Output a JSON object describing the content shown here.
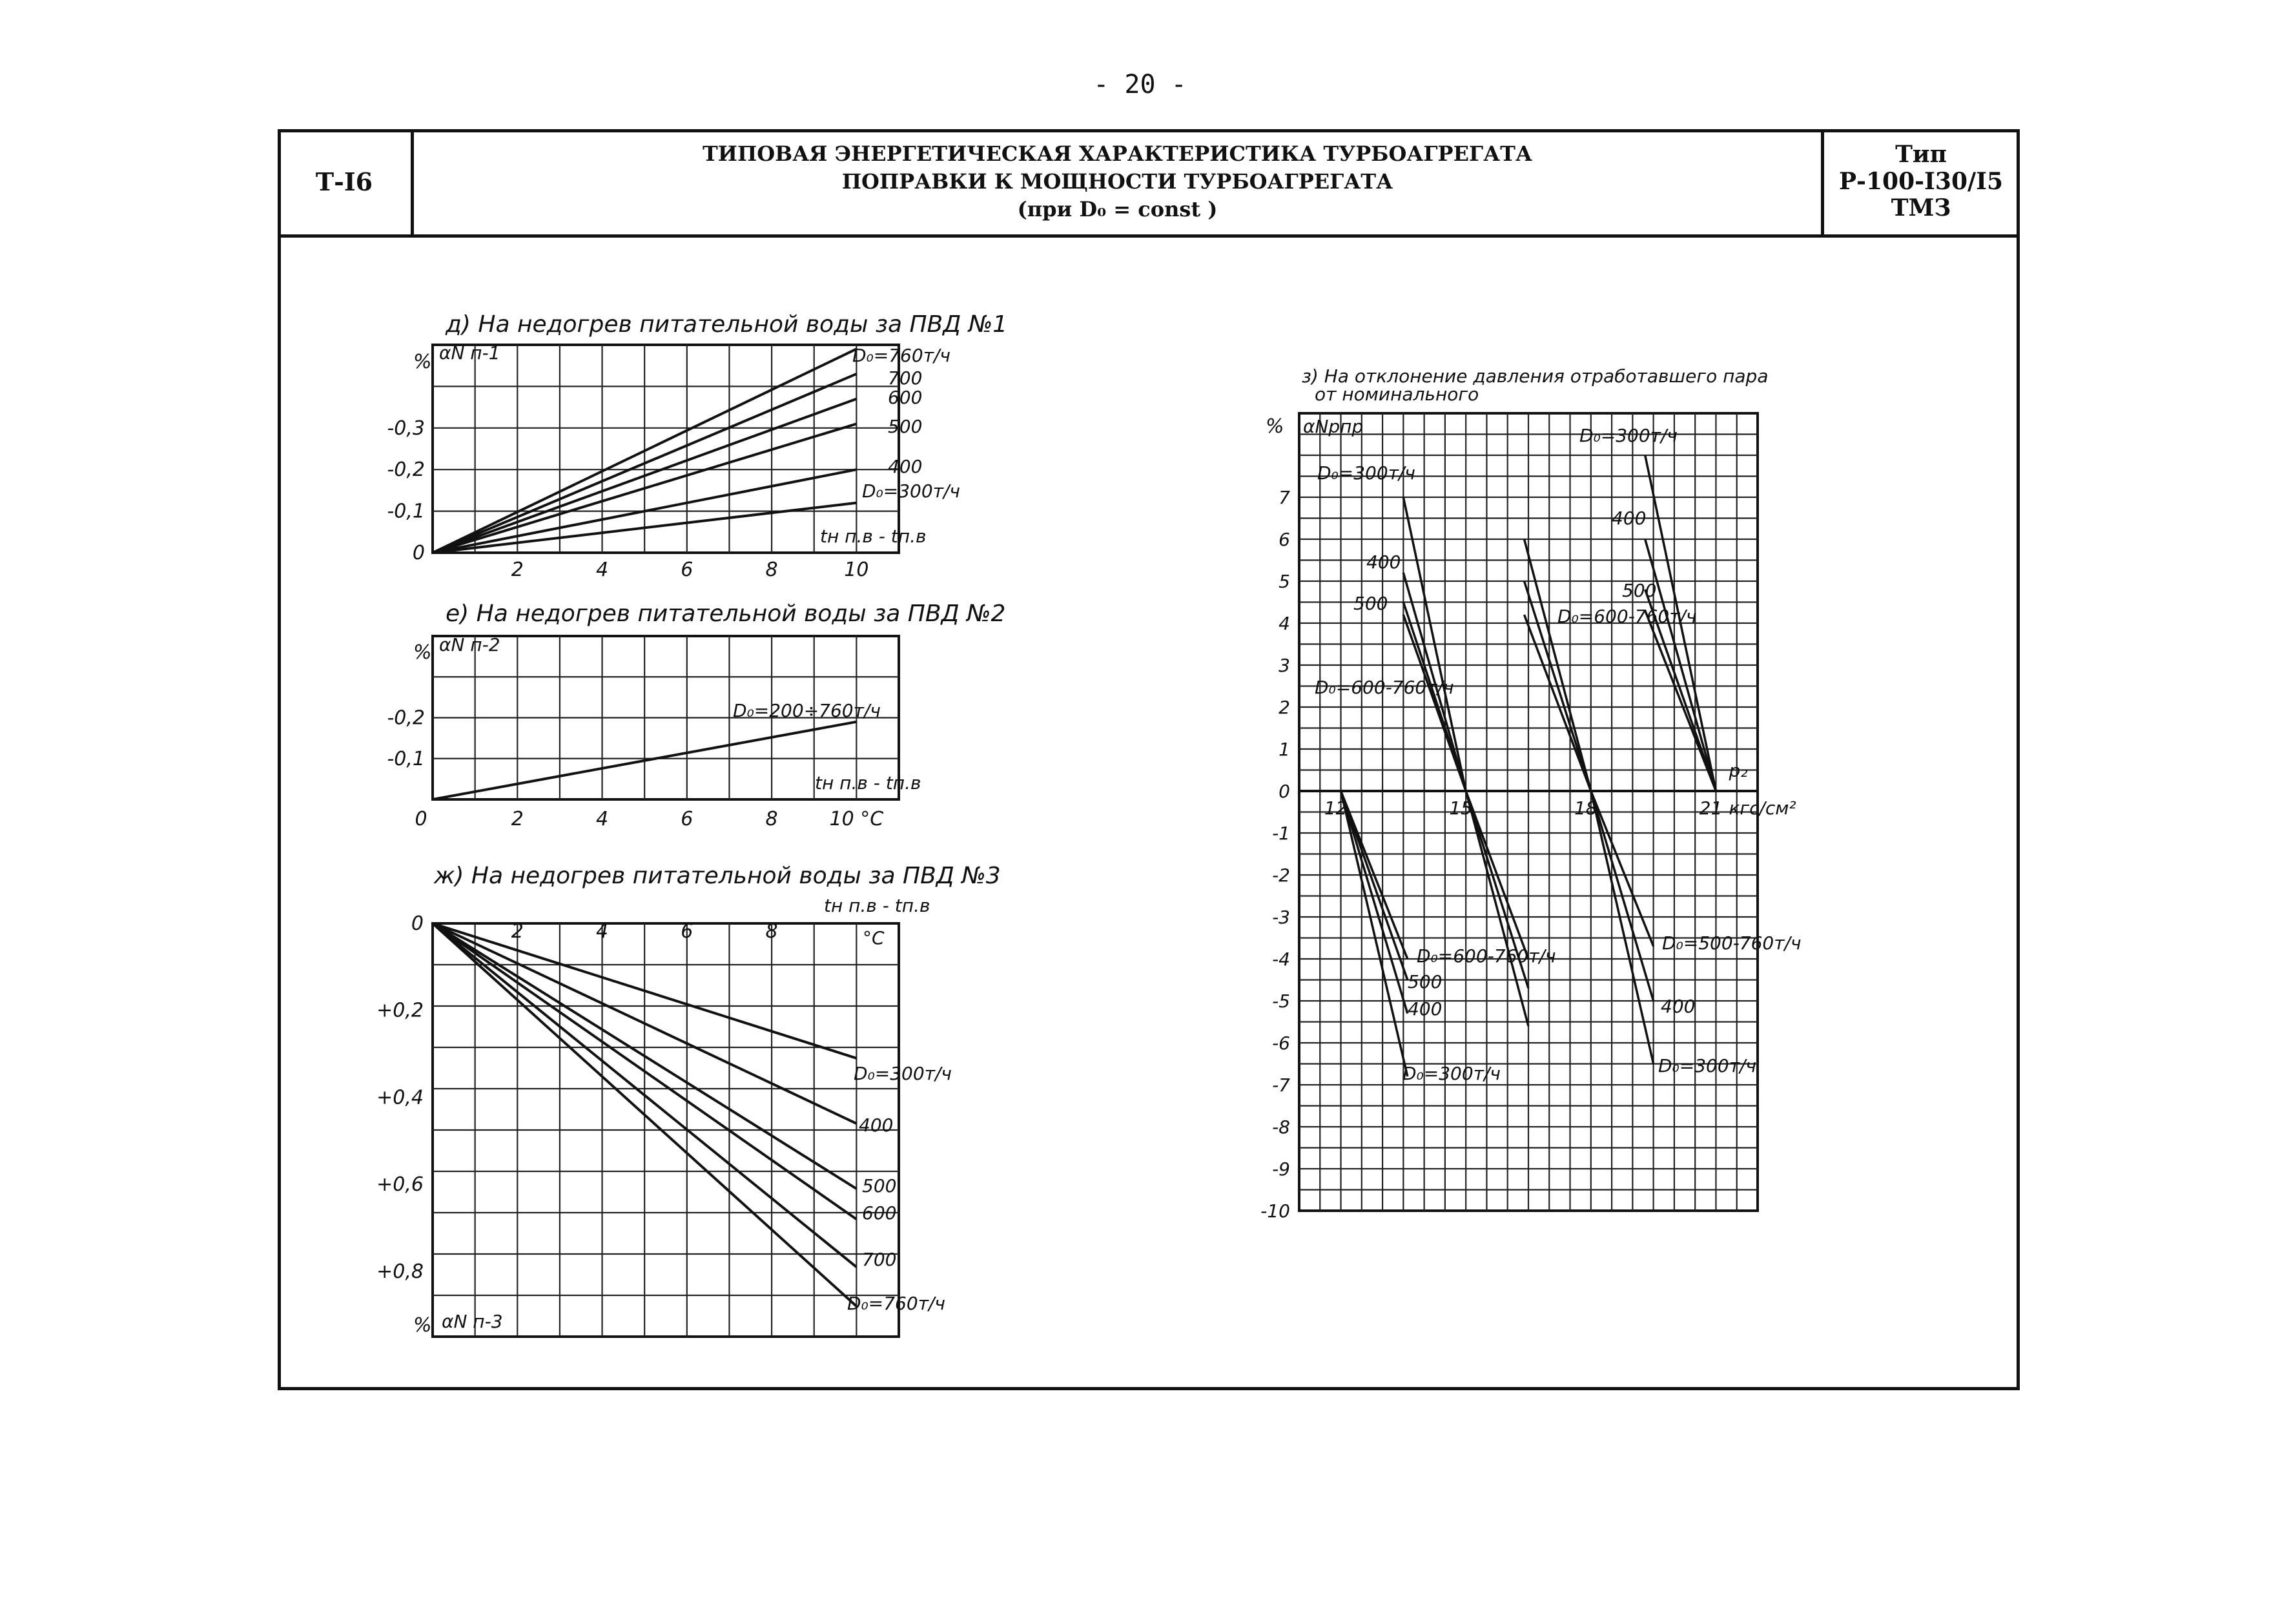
{
  "page_number": "- 20 -",
  "header": {
    "sheet_code": "Т-I6",
    "title_line1": "ТИПОВАЯ ЭНЕРГЕТИЧЕСКАЯ ХАРАКТЕРИСТИКА ТУРБОАГРЕГАТА",
    "title_line2": "ПОПРАВКИ К МОЩНОСТИ ТУРБОАГРЕГАТА",
    "title_line3": "(при D₀ = const )",
    "type_label": "Тип",
    "type_model": "Р-100-I30/I5",
    "type_maker": "ТМЗ"
  },
  "chart_data": [
    {
      "id": "d",
      "type": "line",
      "title": "д) На недогрев питательной воды за ПВД №1",
      "ylabel": "αN п-1",
      "y_unit": "%",
      "xlabel": "tн п.в - tп.в",
      "x_ticks": [
        "2",
        "4",
        "6",
        "8",
        "10"
      ],
      "y_ticks": [
        "0",
        "-0,1",
        "-0,2",
        "-0,3"
      ],
      "xlim": [
        0,
        11
      ],
      "ylim": [
        0,
        -0.5
      ],
      "series": [
        {
          "name": "D₀=760т/ч",
          "x": [
            0,
            10
          ],
          "y": [
            0,
            -0.49
          ]
        },
        {
          "name": "700",
          "x": [
            0,
            10
          ],
          "y": [
            0,
            -0.43
          ]
        },
        {
          "name": "600",
          "x": [
            0,
            10
          ],
          "y": [
            0,
            -0.37
          ]
        },
        {
          "name": "500",
          "x": [
            0,
            10
          ],
          "y": [
            0,
            -0.31
          ]
        },
        {
          "name": "400",
          "x": [
            0,
            10
          ],
          "y": [
            0,
            -0.2
          ]
        },
        {
          "name": "D₀=300т/ч",
          "x": [
            0,
            10
          ],
          "y": [
            0,
            -0.12
          ]
        }
      ]
    },
    {
      "id": "e",
      "type": "line",
      "title": "е) На недогрев питательной воды за ПВД №2",
      "ylabel": "αN п-2",
      "y_unit": "%",
      "xlabel": "tн п.в - tп.в",
      "x_ticks": [
        "0",
        "2",
        "4",
        "6",
        "8",
        "10 °С"
      ],
      "y_ticks": [
        "-0,1",
        "-0,2"
      ],
      "xlim": [
        0,
        11
      ],
      "ylim": [
        0,
        -0.4
      ],
      "series": [
        {
          "name": "D₀=200÷760т/ч",
          "x": [
            0,
            10
          ],
          "y": [
            0,
            -0.19
          ]
        }
      ]
    },
    {
      "id": "zh",
      "type": "line",
      "title": "ж) На недогрев питательной воды за ПВД №3",
      "ylabel": "αN п-3",
      "y_unit": "%",
      "xlabel": "tн п.в - tп.в",
      "x_unit": "°С",
      "x_ticks": [
        "2",
        "4",
        "6",
        "8"
      ],
      "y_ticks": [
        "0",
        "+0,2",
        "+0,4",
        "+0,6",
        "+0,8"
      ],
      "xlim": [
        0,
        11
      ],
      "ylim": [
        0,
        0.95
      ],
      "series": [
        {
          "name": "D₀=300т/ч",
          "x": [
            0,
            10
          ],
          "y": [
            0,
            0.31
          ]
        },
        {
          "name": "400",
          "x": [
            0,
            10
          ],
          "y": [
            0,
            0.46
          ]
        },
        {
          "name": "500",
          "x": [
            0,
            10
          ],
          "y": [
            0,
            0.61
          ]
        },
        {
          "name": "600",
          "x": [
            0,
            10
          ],
          "y": [
            0,
            0.68
          ]
        },
        {
          "name": "700",
          "x": [
            0,
            10
          ],
          "y": [
            0,
            0.79
          ]
        },
        {
          "name": "D₀=760т/ч",
          "x": [
            0,
            10
          ],
          "y": [
            0,
            0.88
          ]
        }
      ]
    },
    {
      "id": "z",
      "type": "line",
      "title": "з) На отклонение давления отработавшего пара от номинального",
      "ylabel": "αNpпр",
      "y_unit": "%",
      "xlabel": "p₂",
      "x_unit": "кгс/см²",
      "x_ticks": [
        "12",
        "15",
        "18",
        "21"
      ],
      "y_ticks": [
        "7",
        "6",
        "5",
        "4",
        "3",
        "2",
        "1",
        "0",
        "-1",
        "-2",
        "-3",
        "-4",
        "-5",
        "-6",
        "-7",
        "-8",
        "-9",
        "-10"
      ],
      "xlim": [
        11,
        22
      ],
      "ylim": [
        -10,
        9
      ],
      "labels": {
        "upper_left_300": "D₀=300т/ч",
        "upper_left_400": "400",
        "upper_left_500": "500",
        "upper_left_600": "D₀=600-760т/ч",
        "upper_right_300": "D₀=300т/ч",
        "upper_right_400": "400",
        "upper_right_500": "500",
        "upper_mid_600": "D₀=600-760т/ч",
        "lower_left_600": "D₀=600-760т/ч",
        "lower_left_500": "500",
        "lower_left_400": "400",
        "lower_left_300": "D₀=300т/ч",
        "lower_right_500": "D₀=500-760т/ч",
        "lower_right_400": "400",
        "lower_right_300": "D₀=300т/ч"
      },
      "series": [
        {
          "name": "D₀=300т/ч (12–15)",
          "x": [
            13.5,
            15.0
          ],
          "y": [
            7.0,
            0
          ]
        },
        {
          "name": "400 (12–15)",
          "x": [
            13.5,
            15.0
          ],
          "y": [
            5.2,
            0
          ]
        },
        {
          "name": "500 (12–15)",
          "x": [
            13.5,
            15.0
          ],
          "y": [
            4.5,
            0
          ]
        },
        {
          "name": "D₀=600-760т/ч (12–15)",
          "x": [
            13.5,
            15.0
          ],
          "y": [
            4.2,
            0
          ]
        },
        {
          "name": "D₀=300т/ч (15–18)",
          "x": [
            16.4,
            18.0
          ],
          "y": [
            6.0,
            0
          ]
        },
        {
          "name": "400 (15–18)",
          "x": [
            16.4,
            18.0
          ],
          "y": [
            5.0,
            0
          ]
        },
        {
          "name": "D₀=600-760т/ч (15–18)",
          "x": [
            16.4,
            18.0
          ],
          "y": [
            4.2,
            0
          ]
        },
        {
          "name": "D₀=300т/ч (18–21)",
          "x": [
            19.3,
            21.0
          ],
          "y": [
            8.0,
            0
          ]
        },
        {
          "name": "400 (18–21)",
          "x": [
            19.3,
            21.0
          ],
          "y": [
            6.0,
            0
          ]
        },
        {
          "name": "500 (18–21)",
          "x": [
            19.3,
            21.0
          ],
          "y": [
            4.8,
            0
          ]
        },
        {
          "name": "600-760 (18–21)",
          "x": [
            19.3,
            21.0
          ],
          "y": [
            4.3,
            0
          ]
        },
        {
          "name": "D₀=300т/ч (12–15 down)",
          "x": [
            12.0,
            13.6
          ],
          "y": [
            0,
            -6.8
          ]
        },
        {
          "name": "400 (12–15 down)",
          "x": [
            12.0,
            13.6
          ],
          "y": [
            0,
            -5.3
          ]
        },
        {
          "name": "500 (12–15 down)",
          "x": [
            12.0,
            13.6
          ],
          "y": [
            0,
            -4.5
          ]
        },
        {
          "name": "D₀=600-760т/ч (12–15 down)",
          "x": [
            12.0,
            13.6
          ],
          "y": [
            0,
            -4.0
          ]
        },
        {
          "name": "D₀=300т/ч (15–18 down)",
          "x": [
            15.0,
            16.5
          ],
          "y": [
            0,
            -5.6
          ]
        },
        {
          "name": "400 (15–18 down)",
          "x": [
            15.0,
            16.5
          ],
          "y": [
            0,
            -4.7
          ]
        },
        {
          "name": "600-760 (15–18 down)",
          "x": [
            15.0,
            16.5
          ],
          "y": [
            0,
            -4.0
          ]
        },
        {
          "name": "D₀=300т/ч (18–21 down)",
          "x": [
            18.0,
            19.5
          ],
          "y": [
            0,
            -6.5
          ]
        },
        {
          "name": "400 (18–21 down)",
          "x": [
            18.0,
            19.5
          ],
          "y": [
            0,
            -5.0
          ]
        },
        {
          "name": "D₀=500-760т/ч (18–21 down)",
          "x": [
            18.0,
            19.5
          ],
          "y": [
            0,
            -3.7
          ]
        }
      ]
    }
  ]
}
